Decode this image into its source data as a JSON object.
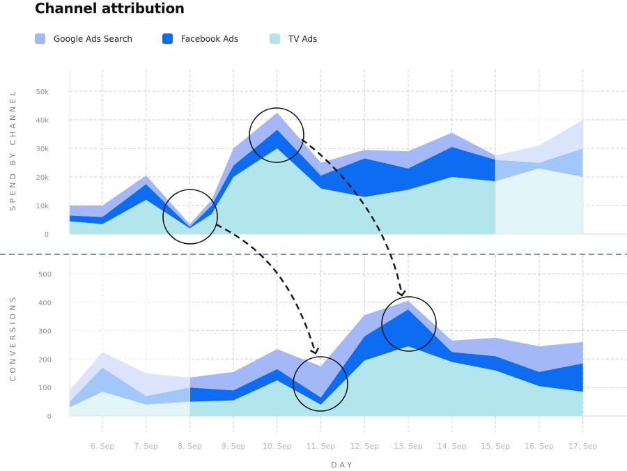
{
  "title": "Channel attribution",
  "legend": [
    {
      "label": "Google Ads Search",
      "color": "#a4b7f7"
    },
    {
      "label": "Facebook Ads",
      "color": "#0c6cf2"
    },
    {
      "label": "TV Ads",
      "color": "#b3e6ec"
    }
  ],
  "chart_data": [
    {
      "type": "area",
      "stacked": true,
      "ylabel": "SPEND BY CHANNEL",
      "ylim": [
        0,
        50000
      ],
      "yticks": [
        "0",
        "10k",
        "20k",
        "30k",
        "40k",
        "50k"
      ],
      "categories": [
        "6. Sep",
        "7. Sep",
        "8. Sep",
        "9. Sep",
        "10. Sep",
        "11. Sep",
        "12. Sep",
        "13. Sep",
        "14. Sep",
        "15. Sep",
        "16. Sep",
        "17. Sep"
      ],
      "x": [
        -0.75,
        0,
        1,
        2,
        2.5,
        3,
        4,
        5,
        6,
        7,
        8,
        9,
        10,
        11
      ],
      "series": [
        {
          "name": "TV Ads",
          "values": [
            4500,
            3500,
            12000,
            2000,
            7000,
            20000,
            30000,
            16000,
            13000,
            15500,
            20000,
            18500,
            23000,
            20000
          ]
        },
        {
          "name": "Facebook Ads",
          "values": [
            2000,
            2500,
            5500,
            500,
            3000,
            4000,
            6500,
            4500,
            13500,
            7500,
            10500,
            7500,
            2000,
            10000
          ]
        },
        {
          "name": "Google Ads Search",
          "values": [
            3500,
            4000,
            3000,
            1000,
            2000,
            6000,
            6000,
            4500,
            3000,
            6000,
            5000,
            1500,
            6000,
            10000
          ]
        }
      ],
      "faded_from_x": 9
    },
    {
      "type": "area",
      "stacked": true,
      "ylabel": "CONVERSIONS",
      "xlabel": "DAY",
      "ylim": [
        0,
        500
      ],
      "yticks": [
        "0",
        "100",
        "200",
        "300",
        "400",
        "500"
      ],
      "categories": [
        "6. Sep",
        "7. Sep",
        "8. Sep",
        "9. Sep",
        "10. Sep",
        "11. Sep",
        "12. Sep",
        "13. Sep",
        "14. Sep",
        "15. Sep",
        "16. Sep",
        "17. Sep"
      ],
      "x": [
        -0.75,
        0,
        1,
        2,
        3,
        4,
        5,
        6,
        7,
        8,
        9,
        10,
        11
      ],
      "series": [
        {
          "name": "TV Ads",
          "values": [
            30,
            85,
            40,
            50,
            55,
            125,
            40,
            195,
            245,
            190,
            160,
            105,
            85
          ]
        },
        {
          "name": "Facebook Ads",
          "values": [
            20,
            85,
            30,
            50,
            35,
            40,
            25,
            85,
            130,
            35,
            50,
            50,
            100
          ]
        },
        {
          "name": "Google Ads Search",
          "values": [
            40,
            55,
            80,
            35,
            65,
            70,
            110,
            75,
            30,
            40,
            65,
            90,
            75
          ]
        }
      ],
      "faded_until_x": 2
    }
  ],
  "lag_arrows": [
    {
      "from_day": "8. Sep",
      "to_day": "11. Sep"
    },
    {
      "from_day": "10. Sep",
      "to_day": "13. Sep"
    }
  ]
}
